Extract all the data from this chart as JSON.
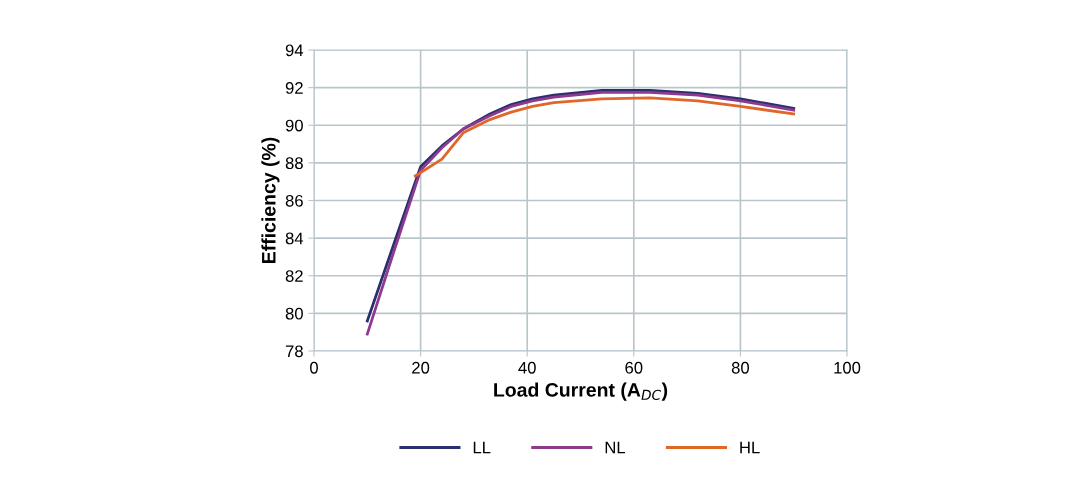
{
  "chart_data": {
    "type": "line",
    "xlabel": "Load Current (A$_{DC}$)",
    "ylabel": "Efficiency (%)",
    "xlim": [
      0,
      100
    ],
    "xticks": [
      0,
      20,
      40,
      60,
      80,
      100
    ],
    "ylim": [
      78,
      94
    ],
    "yticks": [
      78,
      80,
      82,
      84,
      86,
      88,
      90,
      92,
      94
    ],
    "grid": true,
    "legend": "bottom",
    "marker": "none",
    "line_style": "solid",
    "series": [
      {
        "name": "LL",
        "color": "#2b2f6e",
        "x": [
          10,
          15,
          20,
          24,
          28,
          33,
          37,
          41,
          45,
          54,
          63,
          72,
          80,
          90
        ],
        "values": [
          79.6,
          83.7,
          87.8,
          88.9,
          89.8,
          90.6,
          91.1,
          91.4,
          91.6,
          91.85,
          91.85,
          91.7,
          91.4,
          90.9
        ]
      },
      {
        "name": "NL",
        "color": "#8b3a8f",
        "x": [
          10,
          15,
          20,
          24,
          28,
          33,
          37,
          41,
          45,
          54,
          63,
          72,
          80,
          90
        ],
        "values": [
          78.9,
          83.3,
          87.6,
          88.8,
          89.8,
          90.5,
          91.0,
          91.3,
          91.5,
          91.75,
          91.75,
          91.6,
          91.3,
          90.8
        ]
      },
      {
        "name": "HL",
        "color": "#e0672a",
        "x": [
          19,
          24,
          28,
          33,
          37,
          41,
          45,
          54,
          63,
          72,
          80,
          90
        ],
        "values": [
          87.3,
          88.2,
          89.6,
          90.3,
          90.7,
          91.0,
          91.2,
          91.4,
          91.45,
          91.3,
          91.0,
          90.6
        ]
      }
    ]
  }
}
